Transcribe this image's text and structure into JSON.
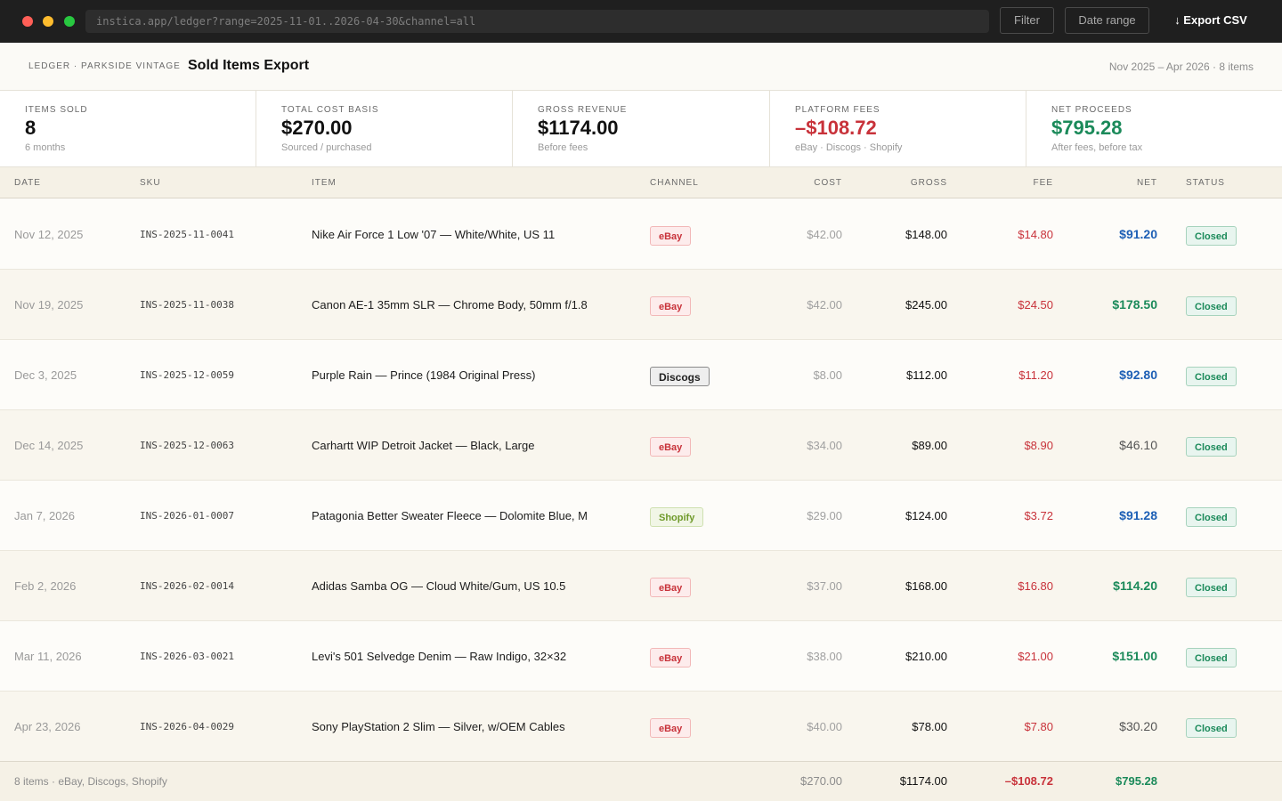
{
  "browser": {
    "url": "instica.app/ledger?range=2025-11-01..2026-04-30&channel=all",
    "filter_label": "Filter",
    "date_range_label": "Date range",
    "export_label": "↓ Export CSV"
  },
  "header": {
    "breadcrumb": "LEDGER · PARKSIDE VINTAGE",
    "title": "Sold Items Export",
    "range": "Nov 2025 – Apr 2026",
    "count": "8 items"
  },
  "kpis": [
    {
      "label": "ITEMS SOLD",
      "value": "8",
      "sub": "6 months",
      "tone": "default"
    },
    {
      "label": "TOTAL COST BASIS",
      "value": "$270.00",
      "sub": "Sourced / purchased",
      "tone": "default"
    },
    {
      "label": "GROSS REVENUE",
      "value": "$1174.00",
      "sub": "Before fees",
      "tone": "default"
    },
    {
      "label": "PLATFORM FEES",
      "value": "–$108.72",
      "sub": "eBay · Discogs · Shopify",
      "tone": "neg"
    },
    {
      "label": "NET PROCEEDS",
      "value": "$795.28",
      "sub": "After fees, before tax",
      "tone": "pos"
    }
  ],
  "columns": {
    "date": "DATE",
    "sku": "SKU",
    "item": "ITEM",
    "channel": "CHANNEL",
    "cost": "COST",
    "gross": "GROSS",
    "fee": "FEE",
    "net": "NET",
    "status": "STATUS"
  },
  "rows": [
    {
      "date": "Nov 12, 2025",
      "sku": "INS-2025-11-0041",
      "item": "Nike Air Force 1 Low '07 — White/White, US 11",
      "channel": "eBay",
      "cost": "$42.00",
      "gross": "$148.00",
      "fee": "$14.80",
      "net": "$91.20",
      "net_tone": "blue",
      "status": "Closed"
    },
    {
      "date": "Nov 19, 2025",
      "sku": "INS-2025-11-0038",
      "item": "Canon AE-1 35mm SLR — Chrome Body, 50mm f/1.8",
      "channel": "eBay",
      "cost": "$42.00",
      "gross": "$245.00",
      "fee": "$24.50",
      "net": "$178.50",
      "net_tone": "green",
      "status": "Closed"
    },
    {
      "date": "Dec 3, 2025",
      "sku": "INS-2025-12-0059",
      "item": "Purple Rain — Prince (1984 Original Press)",
      "channel": "Discogs",
      "cost": "$8.00",
      "gross": "$112.00",
      "fee": "$11.20",
      "net": "$92.80",
      "net_tone": "blue",
      "status": "Closed"
    },
    {
      "date": "Dec 14, 2025",
      "sku": "INS-2025-12-0063",
      "item": "Carhartt WIP Detroit Jacket — Black, Large",
      "channel": "eBay",
      "cost": "$34.00",
      "gross": "$89.00",
      "fee": "$8.90",
      "net": "$46.10",
      "net_tone": "gray",
      "status": "Closed"
    },
    {
      "date": "Jan 7, 2026",
      "sku": "INS-2026-01-0007",
      "item": "Patagonia Better Sweater Fleece — Dolomite Blue, M",
      "channel": "Shopify",
      "cost": "$29.00",
      "gross": "$124.00",
      "fee": "$3.72",
      "net": "$91.28",
      "net_tone": "blue",
      "status": "Closed"
    },
    {
      "date": "Feb 2, 2026",
      "sku": "INS-2026-02-0014",
      "item": "Adidas Samba OG — Cloud White/Gum, US 10.5",
      "channel": "eBay",
      "cost": "$37.00",
      "gross": "$168.00",
      "fee": "$16.80",
      "net": "$114.20",
      "net_tone": "green",
      "status": "Closed"
    },
    {
      "date": "Mar 11, 2026",
      "sku": "INS-2026-03-0021",
      "item": "Levi's 501 Selvedge Denim — Raw Indigo, 32×32",
      "channel": "eBay",
      "cost": "$38.00",
      "gross": "$210.00",
      "fee": "$21.00",
      "net": "$151.00",
      "net_tone": "green",
      "status": "Closed"
    },
    {
      "date": "Apr 23, 2026",
      "sku": "INS-2026-04-0029",
      "item": "Sony PlayStation 2 Slim — Silver, w/OEM Cables",
      "channel": "eBay",
      "cost": "$40.00",
      "gross": "$78.00",
      "fee": "$7.80",
      "net": "$30.20",
      "net_tone": "gray",
      "status": "Closed"
    }
  ],
  "footer": {
    "summary": "8 items · eBay, Discogs, Shopify",
    "cost": "$270.00",
    "gross": "$1174.00",
    "fee": "–$108.72",
    "net": "$795.28"
  },
  "colors": {
    "titlebar": "#1f1f1f",
    "negative": "#c8323a",
    "positive": "#1b8a5a",
    "net_blue": "#1d5fb5"
  }
}
